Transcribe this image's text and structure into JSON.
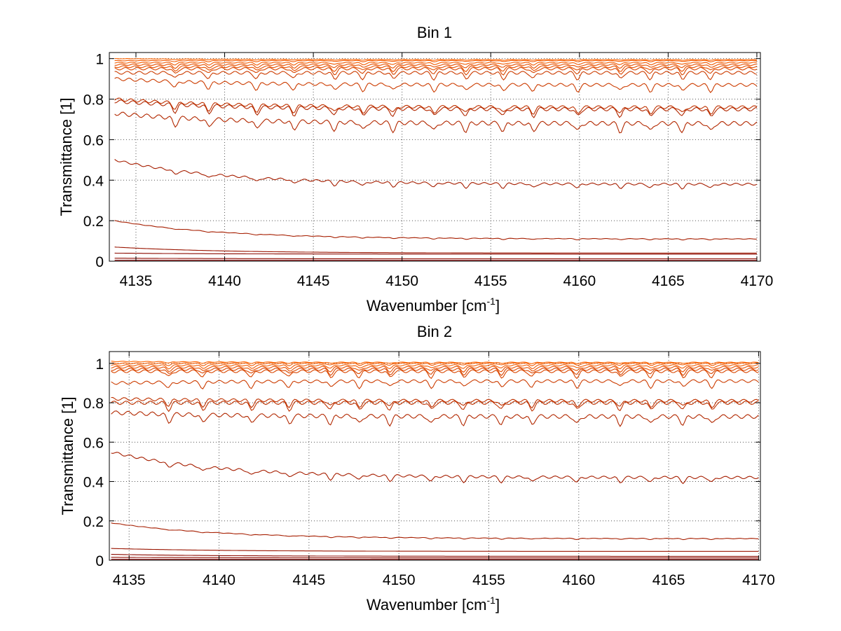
{
  "chart_data": [
    {
      "type": "line",
      "title": "Bin 1",
      "xlabel_main": "Wavenumber [cm",
      "xlabel_sup": "-1",
      "xlabel_close": "]",
      "ylabel": "Transmittance [1]",
      "xlim": [
        4133.5,
        4170.2
      ],
      "ylim": [
        0,
        1.03
      ],
      "xticks": [
        4135,
        4140,
        4145,
        4150,
        4155,
        4160,
        4165,
        4170
      ],
      "yticks": [
        0,
        0.2,
        0.4,
        0.6,
        0.8,
        1
      ],
      "ytick_labels": [
        "0",
        "0.2",
        "0.4",
        "0.6",
        "0.8",
        "1"
      ],
      "grid": true,
      "x_start": 4133.8,
      "x_end": 4170,
      "series_colors": [
        "#7f0000",
        "#8c0a00",
        "#991400",
        "#a61e00",
        "#b22800",
        "#bf3200",
        "#cc3c00",
        "#d94600",
        "#e65000",
        "#f25a00",
        "#ff6400"
      ],
      "series": [
        {
          "start": 0.005,
          "end": 0.005,
          "dip": 0.0
        },
        {
          "start": 0.015,
          "end": 0.012,
          "dip": 0.0
        },
        {
          "start": 0.04,
          "end": 0.035,
          "dip": 0.0
        },
        {
          "start": 0.07,
          "end": 0.04,
          "dip": 0.0
        },
        {
          "start": 0.2,
          "end": 0.11,
          "dip": 0.005
        },
        {
          "start": 0.5,
          "end": 0.38,
          "dip": 0.02
        },
        {
          "start": 0.73,
          "end": 0.68,
          "dip": 0.04
        },
        {
          "start": 0.79,
          "end": 0.75,
          "dip": 0.035
        },
        {
          "start": 0.8,
          "end": 0.76,
          "dip": 0.03
        },
        {
          "start": 0.9,
          "end": 0.87,
          "dip": 0.03
        },
        {
          "start": 0.93,
          "end": 0.93,
          "dip": 0.03
        },
        {
          "start": 0.95,
          "end": 0.95,
          "dip": 0.025
        },
        {
          "start": 0.96,
          "end": 0.96,
          "dip": 0.02
        },
        {
          "start": 0.97,
          "end": 0.97,
          "dip": 0.015
        },
        {
          "start": 0.98,
          "end": 0.98,
          "dip": 0.01
        },
        {
          "start": 0.99,
          "end": 0.99,
          "dip": 0.005
        },
        {
          "start": 1.0,
          "end": 0.995,
          "dip": 0.003
        }
      ]
    },
    {
      "type": "line",
      "title": "Bin 2",
      "xlabel_main": "Wavenumber [cm",
      "xlabel_sup": "-1",
      "xlabel_close": "]",
      "ylabel": "Transmittance [1]",
      "xlim": [
        4133.9,
        4170.1
      ],
      "ylim": [
        0,
        1.06
      ],
      "xticks": [
        4135,
        4140,
        4145,
        4150,
        4155,
        4160,
        4165,
        4170
      ],
      "yticks": [
        0,
        0.2,
        0.4,
        0.6,
        0.8,
        1
      ],
      "ytick_labels": [
        "0",
        "0.2",
        "0.4",
        "0.6",
        "0.8",
        "1"
      ],
      "grid": true,
      "x_start": 4134.0,
      "x_end": 4170,
      "series_colors": [
        "#7f0000",
        "#8c0a00",
        "#991400",
        "#a61e00",
        "#b22800",
        "#bf3200",
        "#cc3c00",
        "#d94600",
        "#e65000",
        "#f25a00",
        "#ff6400"
      ],
      "series": [
        {
          "start": 0.005,
          "end": 0.005,
          "dip": 0.0
        },
        {
          "start": 0.015,
          "end": 0.012,
          "dip": 0.0
        },
        {
          "start": 0.03,
          "end": 0.02,
          "dip": 0.0
        },
        {
          "start": 0.06,
          "end": 0.045,
          "dip": 0.0
        },
        {
          "start": 0.19,
          "end": 0.11,
          "dip": 0.005
        },
        {
          "start": 0.55,
          "end": 0.42,
          "dip": 0.025
        },
        {
          "start": 0.75,
          "end": 0.73,
          "dip": 0.04
        },
        {
          "start": 0.8,
          "end": 0.8,
          "dip": 0.035
        },
        {
          "start": 0.82,
          "end": 0.81,
          "dip": 0.03
        },
        {
          "start": 0.9,
          "end": 0.91,
          "dip": 0.03
        },
        {
          "start": 0.96,
          "end": 0.96,
          "dip": 0.03
        },
        {
          "start": 0.97,
          "end": 0.97,
          "dip": 0.025
        },
        {
          "start": 0.98,
          "end": 0.98,
          "dip": 0.02
        },
        {
          "start": 0.99,
          "end": 0.99,
          "dip": 0.015
        },
        {
          "start": 1.0,
          "end": 1.0,
          "dip": 0.01
        },
        {
          "start": 1.01,
          "end": 1.005,
          "dip": 0.006
        }
      ]
    }
  ]
}
